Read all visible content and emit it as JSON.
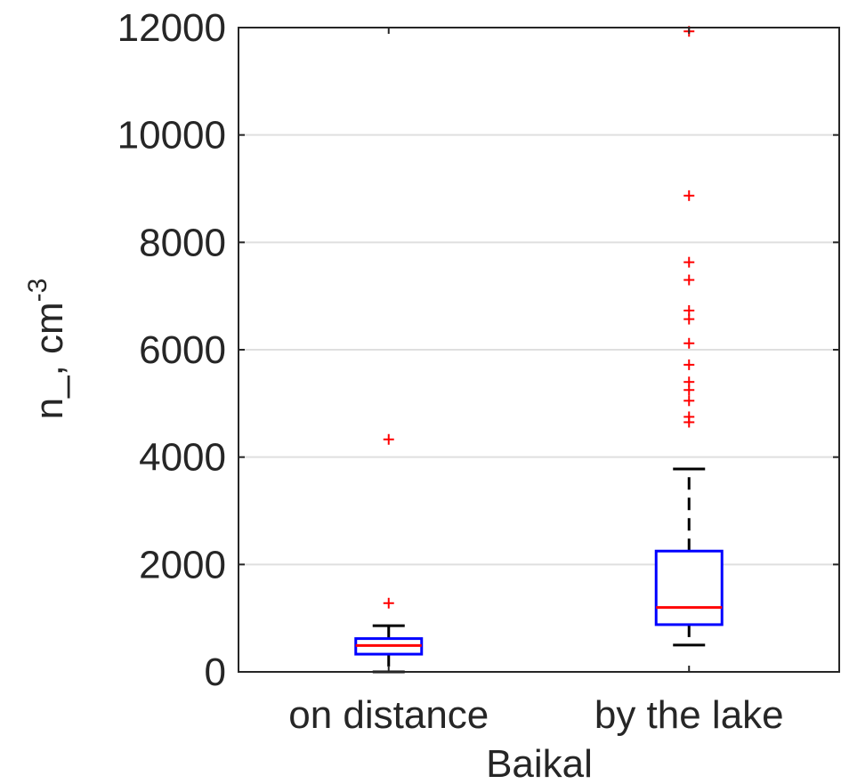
{
  "chart_data": {
    "type": "box",
    "title": "",
    "xlabel": "Baikal",
    "ylabel": "n_, cm",
    "ylabel_superscript": "-3",
    "ylim": [
      0,
      12000
    ],
    "yticks": [
      0,
      2000,
      4000,
      6000,
      8000,
      10000,
      12000
    ],
    "ytick_labels": [
      "0",
      "2000",
      "4000",
      "6000",
      "8000",
      "10000",
      "12000"
    ],
    "grid": "horizontal",
    "categories": [
      "on distance",
      "by the lake"
    ],
    "boxes": [
      {
        "category": "on distance",
        "whisker_low": 0,
        "q1": 330,
        "median": 490,
        "q3": 620,
        "whisker_high": 860,
        "outliers": [
          1280,
          4330
        ]
      },
      {
        "category": "by the lake",
        "whisker_low": 500,
        "q1": 880,
        "median": 1200,
        "q3": 2250,
        "whisker_high": 3780,
        "outliers": [
          4650,
          4750,
          5050,
          5250,
          5400,
          5720,
          6120,
          6570,
          6730,
          7300,
          7630,
          8870,
          11930
        ]
      }
    ],
    "colors": {
      "box": "#0000ff",
      "median": "#ff0000",
      "whisker": "#000000",
      "outlier": "#ff0000",
      "grid": "#dfdfdf",
      "axis": "#262626"
    }
  }
}
